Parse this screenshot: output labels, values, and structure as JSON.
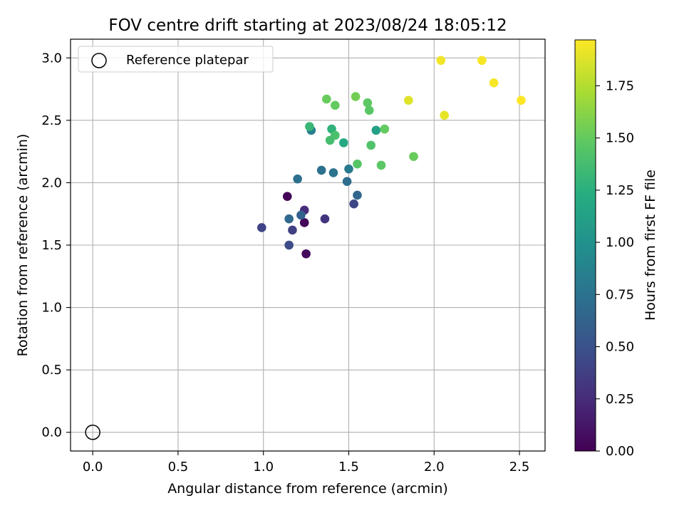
{
  "chart_data": {
    "type": "scatter",
    "title": "FOV centre drift starting at 2023/08/24 18:05:12",
    "xlabel": "Angular distance from reference (arcmin)",
    "ylabel": "Rotation from reference (arcmin)",
    "xlim": [
      -0.13,
      2.65
    ],
    "ylim": [
      -0.15,
      3.15
    ],
    "xticks": [
      0.0,
      0.5,
      1.0,
      1.5,
      2.0,
      2.5
    ],
    "yticks": [
      0.0,
      0.5,
      1.0,
      1.5,
      2.0,
      2.5,
      3.0
    ],
    "grid": true,
    "legend": {
      "position": "top-left",
      "entries": [
        "Reference platepar"
      ]
    },
    "reference_point": {
      "x": 0.0,
      "y": 0.0,
      "label": "Reference platepar"
    },
    "colorbar": {
      "label": "Hours from first FF file",
      "colormap": "viridis",
      "range": [
        0.0,
        1.97
      ],
      "ticks": [
        0.0,
        0.25,
        0.5,
        0.75,
        1.0,
        1.25,
        1.5,
        1.75
      ]
    },
    "series": [
      {
        "points": [
          {
            "x": 1.14,
            "y": 1.89,
            "c": 0.02
          },
          {
            "x": 1.24,
            "y": 1.68,
            "c": 0.03
          },
          {
            "x": 1.25,
            "y": 1.43,
            "c": 0.05
          },
          {
            "x": 1.24,
            "y": 1.78,
            "c": 0.25
          },
          {
            "x": 1.36,
            "y": 1.71,
            "c": 0.3
          },
          {
            "x": 1.17,
            "y": 1.62,
            "c": 0.38
          },
          {
            "x": 0.99,
            "y": 1.64,
            "c": 0.4
          },
          {
            "x": 1.53,
            "y": 1.83,
            "c": 0.42
          },
          {
            "x": 1.15,
            "y": 1.5,
            "c": 0.45
          },
          {
            "x": 1.22,
            "y": 1.74,
            "c": 0.62
          },
          {
            "x": 1.15,
            "y": 1.71,
            "c": 0.68
          },
          {
            "x": 1.55,
            "y": 1.9,
            "c": 0.66
          },
          {
            "x": 1.49,
            "y": 2.01,
            "c": 0.7
          },
          {
            "x": 1.2,
            "y": 2.03,
            "c": 0.72
          },
          {
            "x": 1.34,
            "y": 2.1,
            "c": 0.74
          },
          {
            "x": 1.41,
            "y": 2.08,
            "c": 0.76
          },
          {
            "x": 1.5,
            "y": 2.11,
            "c": 0.8
          },
          {
            "x": 1.28,
            "y": 2.42,
            "c": 0.85
          },
          {
            "x": 1.66,
            "y": 2.42,
            "c": 1.12
          },
          {
            "x": 1.47,
            "y": 2.32,
            "c": 1.2
          },
          {
            "x": 1.4,
            "y": 2.43,
            "c": 1.28
          },
          {
            "x": 1.27,
            "y": 2.45,
            "c": 1.32
          },
          {
            "x": 1.39,
            "y": 2.34,
            "c": 1.38
          },
          {
            "x": 1.42,
            "y": 2.38,
            "c": 1.4
          },
          {
            "x": 1.63,
            "y": 2.3,
            "c": 1.42
          },
          {
            "x": 1.55,
            "y": 2.15,
            "c": 1.45
          },
          {
            "x": 1.69,
            "y": 2.14,
            "c": 1.47
          },
          {
            "x": 1.71,
            "y": 2.43,
            "c": 1.5
          },
          {
            "x": 1.88,
            "y": 2.21,
            "c": 1.52
          },
          {
            "x": 1.42,
            "y": 2.62,
            "c": 1.5
          },
          {
            "x": 1.37,
            "y": 2.67,
            "c": 1.52
          },
          {
            "x": 1.54,
            "y": 2.69,
            "c": 1.55
          },
          {
            "x": 1.61,
            "y": 2.64,
            "c": 1.48
          },
          {
            "x": 1.62,
            "y": 2.58,
            "c": 1.46
          },
          {
            "x": 1.85,
            "y": 2.66,
            "c": 1.88
          },
          {
            "x": 2.06,
            "y": 2.54,
            "c": 1.9
          },
          {
            "x": 2.04,
            "y": 2.98,
            "c": 1.93
          },
          {
            "x": 2.28,
            "y": 2.98,
            "c": 1.95
          },
          {
            "x": 2.35,
            "y": 2.8,
            "c": 1.95
          },
          {
            "x": 2.51,
            "y": 2.66,
            "c": 1.97
          }
        ]
      }
    ]
  }
}
